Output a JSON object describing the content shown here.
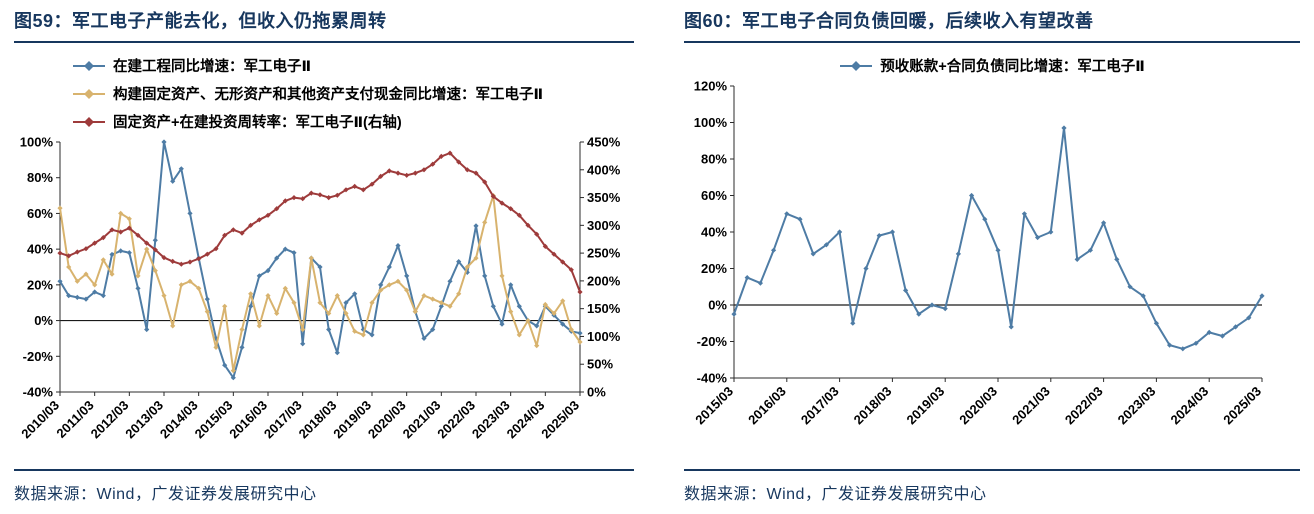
{
  "page": {
    "accent_color": "#17375E",
    "sources": [
      "数据来源：Wind，广发证券发展研究中心",
      "数据来源：Wind，广发证券发展研究中心"
    ]
  },
  "chart_data": [
    {
      "type": "line",
      "title": "图59：军工电子产能去化，但收入仍拖累周转",
      "legend_position": "top-left",
      "grid": false,
      "axes": {
        "left": {
          "min": -40,
          "max": 100,
          "step": 20,
          "unit": "%"
        },
        "right": {
          "min": 0,
          "max": 450,
          "step": 50,
          "unit": "%"
        }
      },
      "x": [
        "2010/03",
        "2010/06",
        "2010/09",
        "2010/12",
        "2011/03",
        "2011/06",
        "2011/09",
        "2011/12",
        "2012/03",
        "2012/06",
        "2012/09",
        "2012/12",
        "2013/03",
        "2013/06",
        "2013/09",
        "2013/12",
        "2014/03",
        "2014/06",
        "2014/09",
        "2014/12",
        "2015/03",
        "2015/06",
        "2015/09",
        "2015/12",
        "2016/03",
        "2016/06",
        "2016/09",
        "2016/12",
        "2017/03",
        "2017/06",
        "2017/09",
        "2017/12",
        "2018/03",
        "2018/06",
        "2018/09",
        "2018/12",
        "2019/03",
        "2019/06",
        "2019/09",
        "2019/12",
        "2020/03",
        "2020/06",
        "2020/09",
        "2020/12",
        "2021/03",
        "2021/06",
        "2021/09",
        "2021/12",
        "2022/03",
        "2022/06",
        "2022/09",
        "2022/12",
        "2023/03",
        "2023/06",
        "2023/09",
        "2023/12",
        "2024/03",
        "2024/06",
        "2024/09",
        "2024/12",
        "2025/03"
      ],
      "x_tick_suffix": "/03",
      "series": [
        {
          "name": "在建工程同比增速：军工电子Ⅱ",
          "color": "#4E7CA5",
          "axis": "left",
          "values": [
            22,
            14,
            13,
            12,
            16,
            14,
            37,
            39,
            38,
            18,
            -5,
            45,
            100,
            78,
            85,
            60,
            35,
            12,
            -10,
            -25,
            -32,
            -15,
            8,
            25,
            28,
            35,
            40,
            38,
            -13,
            35,
            30,
            -5,
            -18,
            10,
            15,
            -5,
            -8,
            20,
            30,
            42,
            25,
            5,
            -10,
            -5,
            8,
            22,
            33,
            27,
            53,
            25,
            8,
            -2,
            20,
            8,
            0,
            -3,
            8,
            3,
            -2,
            -6,
            -7
          ]
        },
        {
          "name": "构建固定资产、无形资产和其他资产支付现金同比增速：军工电子Ⅱ",
          "color": "#D8B36E",
          "axis": "left",
          "values": [
            63,
            30,
            22,
            26,
            20,
            34,
            26,
            60,
            57,
            25,
            40,
            28,
            14,
            -3,
            20,
            22,
            18,
            5,
            -15,
            8,
            -28,
            -5,
            15,
            -3,
            14,
            4,
            18,
            10,
            -5,
            35,
            10,
            4,
            14,
            4,
            -6,
            -8,
            10,
            17,
            20,
            22,
            17,
            5,
            14,
            12,
            10,
            8,
            15,
            30,
            35,
            55,
            70,
            25,
            5,
            -8,
            0,
            -14,
            9,
            4,
            11,
            -5,
            -12
          ]
        },
        {
          "name": "固定资产+在建投资周转率：军工电子Ⅱ(右轴)",
          "color": "#9E3B3B",
          "axis": "right",
          "values": [
            250,
            245,
            252,
            258,
            268,
            278,
            292,
            288,
            295,
            282,
            268,
            256,
            242,
            235,
            230,
            234,
            240,
            248,
            258,
            282,
            292,
            286,
            300,
            310,
            318,
            330,
            344,
            350,
            348,
            358,
            355,
            350,
            354,
            364,
            370,
            364,
            374,
            388,
            398,
            394,
            390,
            394,
            400,
            410,
            424,
            430,
            414,
            400,
            394,
            378,
            352,
            340,
            330,
            318,
            300,
            284,
            262,
            248,
            234,
            220,
            180
          ]
        }
      ]
    },
    {
      "type": "line",
      "title": "图60：军工电子合同负债回暖，后续收入有望改善",
      "legend_position": "top-center",
      "grid": false,
      "axes": {
        "left": {
          "min": -40,
          "max": 120,
          "step": 20,
          "unit": "%"
        }
      },
      "x": [
        "2015/03",
        "2015/06",
        "2015/09",
        "2015/12",
        "2016/03",
        "2016/06",
        "2016/09",
        "2016/12",
        "2017/03",
        "2017/06",
        "2017/09",
        "2017/12",
        "2018/03",
        "2018/06",
        "2018/09",
        "2018/12",
        "2019/03",
        "2019/06",
        "2019/09",
        "2019/12",
        "2020/03",
        "2020/06",
        "2020/09",
        "2020/12",
        "2021/03",
        "2021/06",
        "2021/09",
        "2021/12",
        "2022/03",
        "2022/06",
        "2022/09",
        "2022/12",
        "2023/03",
        "2023/06",
        "2023/09",
        "2023/12",
        "2024/03",
        "2024/06",
        "2024/09",
        "2024/12",
        "2025/03"
      ],
      "x_tick_suffix": "/03",
      "series": [
        {
          "name": "预收账款+合同负债同比增速：军工电子Ⅱ",
          "color": "#4E7CA5",
          "axis": "left",
          "values": [
            -5,
            15,
            12,
            30,
            50,
            47,
            28,
            33,
            40,
            -10,
            20,
            38,
            40,
            8,
            -5,
            0,
            -2,
            28,
            60,
            47,
            30,
            -12,
            50,
            37,
            40,
            97,
            25,
            30,
            45,
            25,
            10,
            5,
            -10,
            -22,
            -24,
            -21,
            -15,
            -17,
            -12,
            -7,
            5
          ]
        }
      ]
    }
  ]
}
